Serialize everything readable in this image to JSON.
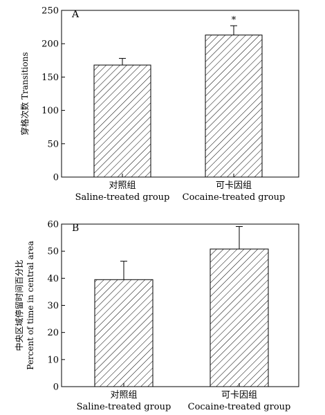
{
  "chart_data": [
    {
      "type": "bar",
      "panel_label": "A",
      "ylabel": "穿格次数 Transitions",
      "ylim": [
        0,
        250
      ],
      "yticks": [
        "0",
        "50",
        "100",
        "150",
        "200",
        "250"
      ],
      "categories": [
        {
          "zh": "对照组",
          "en": "Saline-treated group"
        },
        {
          "zh": "可卡因组",
          "en": "Cocaine-treated group"
        }
      ],
      "values": [
        168,
        213
      ],
      "errors": [
        10,
        14
      ],
      "annotations": [
        "",
        "*"
      ],
      "fill": "diagonal-hatch"
    },
    {
      "type": "bar",
      "panel_label": "B",
      "ylabel_lines": [
        "中央区域停留时间百分比",
        "Percent of time in central area"
      ],
      "ylim": [
        0,
        60
      ],
      "yticks": [
        "0",
        "10",
        "20",
        "30",
        "40",
        "50",
        "60"
      ],
      "categories": [
        {
          "zh": "对照组",
          "en": "Saline-treated group"
        },
        {
          "zh": "可卡因组",
          "en": "Cocaine-treated group"
        }
      ],
      "values": [
        39.5,
        50.8
      ],
      "errors": [
        6.8,
        8.3
      ],
      "annotations": [
        "",
        ""
      ],
      "fill": "diagonal-hatch"
    }
  ]
}
